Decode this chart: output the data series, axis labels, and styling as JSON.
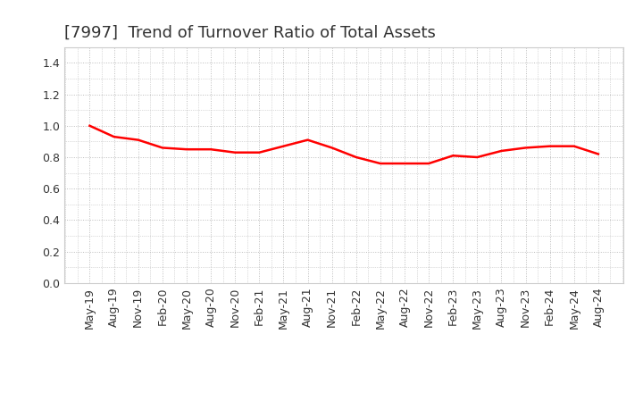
{
  "title": "[7997]  Trend of Turnover Ratio of Total Assets",
  "line_color": "#FF0000",
  "background_color": "#FFFFFF",
  "grid_color": "#BBBBBB",
  "ylim": [
    0.0,
    1.5
  ],
  "yticks": [
    0.0,
    0.2,
    0.4,
    0.6,
    0.8,
    1.0,
    1.2,
    1.4
  ],
  "labels": [
    "May-19",
    "Aug-19",
    "Nov-19",
    "Feb-20",
    "May-20",
    "Aug-20",
    "Nov-20",
    "Feb-21",
    "May-21",
    "Aug-21",
    "Nov-21",
    "Feb-22",
    "May-22",
    "Aug-22",
    "Nov-22",
    "Feb-23",
    "May-23",
    "Aug-23",
    "Nov-23",
    "Feb-24",
    "May-24",
    "Aug-24"
  ],
  "values": [
    1.0,
    0.93,
    0.91,
    0.86,
    0.85,
    0.85,
    0.83,
    0.83,
    0.87,
    0.91,
    0.86,
    0.8,
    0.76,
    0.76,
    0.76,
    0.81,
    0.8,
    0.84,
    0.86,
    0.87,
    0.87,
    0.82
  ],
  "title_fontsize": 13,
  "tick_fontsize": 9,
  "line_width": 1.8,
  "title_color": "#333333"
}
